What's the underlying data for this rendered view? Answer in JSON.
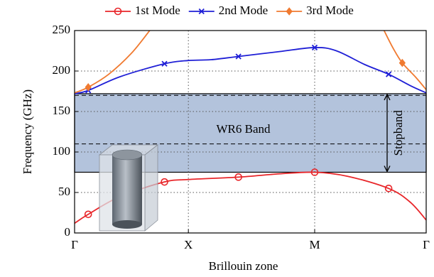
{
  "chart_data": {
    "type": "line",
    "xlabel": "Brillouin zone",
    "ylabel": "Frequency (GHz)",
    "xlim": [
      0,
      3.09
    ],
    "ylim": [
      0,
      250
    ],
    "xticks": [
      {
        "value": 0,
        "label": "Γ"
      },
      {
        "value": 1,
        "label": "X"
      },
      {
        "value": 2.11,
        "label": "M"
      },
      {
        "value": 3.09,
        "label": "Γ"
      }
    ],
    "yticks": [
      0,
      50,
      100,
      150,
      200,
      250
    ],
    "grid": true,
    "band": {
      "ymin": 75,
      "ymax": 172,
      "label": "WR6 Band",
      "color": "#b3c3dc"
    },
    "dashed_lines": [
      110,
      170
    ],
    "stopband": {
      "ymin": 75,
      "ymax": 172,
      "label": "Stopband"
    },
    "series": [
      {
        "name": "1st Mode",
        "color": "#e8262a",
        "marker": "circle",
        "x": [
          0,
          0.12,
          0.4,
          0.79,
          1.0,
          1.44,
          1.8,
          2.11,
          2.4,
          2.76,
          2.95,
          3.09
        ],
        "values": [
          12,
          23,
          45,
          63,
          66,
          69,
          73,
          75,
          70,
          55,
          38,
          16
        ],
        "markers": {
          "x": [
            0.12,
            0.79,
            1.44,
            2.11,
            2.76
          ],
          "values": [
            23,
            63,
            69,
            75,
            55
          ]
        }
      },
      {
        "name": "2nd Mode",
        "color": "#1f1fd6",
        "marker": "x",
        "x": [
          0,
          0.12,
          0.4,
          0.79,
          1.0,
          1.2,
          1.44,
          1.8,
          2.11,
          2.3,
          2.55,
          2.76,
          2.95,
          3.09
        ],
        "values": [
          172,
          176,
          193,
          209,
          213,
          214,
          218,
          224,
          229,
          225,
          208,
          196,
          182,
          173
        ],
        "markers": {
          "x": [
            0.12,
            0.79,
            1.44,
            2.11,
            2.76
          ],
          "values": [
            176,
            209,
            218,
            229,
            196
          ]
        }
      },
      {
        "name": "3rd Mode",
        "color": "#f07a30",
        "marker": "diamond",
        "x": [
          0,
          0.12,
          0.3,
          0.5,
          0.66,
          null,
          2.72,
          2.8,
          2.88,
          3.0,
          3.09
        ],
        "values": [
          173,
          180,
          196,
          222,
          250,
          null,
          250,
          228,
          210,
          192,
          177
        ],
        "markers": {
          "x": [
            0.12,
            2.88
          ],
          "values": [
            180,
            210
          ]
        }
      }
    ]
  }
}
